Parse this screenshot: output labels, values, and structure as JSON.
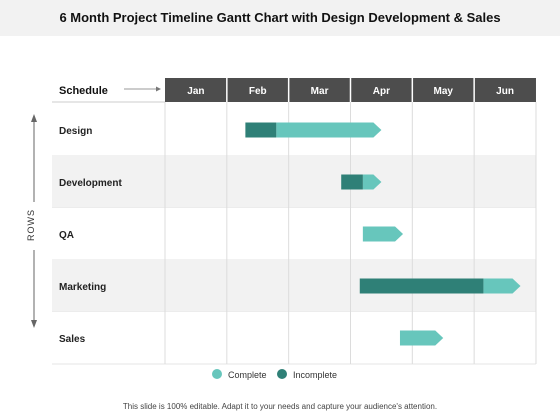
{
  "page": {
    "title": "6 Month Project Timeline Gantt Chart with Design Development & Sales",
    "footer": "This slide is 100% editable. Adapt it to your needs and capture your audience's attention."
  },
  "chart_data": {
    "type": "gantt",
    "header_label": "Schedule",
    "axis_label": "ROWS",
    "months": [
      "Jan",
      "Feb",
      "Mar",
      "Apr",
      "May",
      "Jun"
    ],
    "rows": [
      {
        "name": "Design",
        "incomplete": [
          1.3,
          1.8
        ],
        "complete": [
          1.8,
          3.5
        ]
      },
      {
        "name": "Development",
        "incomplete": [
          2.85,
          3.2
        ],
        "complete": [
          3.2,
          3.5
        ]
      },
      {
        "name": "QA",
        "incomplete": null,
        "complete": [
          3.2,
          3.85
        ]
      },
      {
        "name": "Marketing",
        "incomplete": [
          3.15,
          5.15
        ],
        "complete": [
          5.15,
          5.75
        ]
      },
      {
        "name": "Sales",
        "incomplete": null,
        "complete": [
          3.8,
          4.5
        ]
      }
    ],
    "legend": [
      {
        "label": "Complete",
        "color": "#67c6bc"
      },
      {
        "label": "Incomplete",
        "color": "#2f8077"
      }
    ],
    "colors": {
      "complete": "#67c6bc",
      "incomplete": "#2f8077",
      "header": "#4d4d4d",
      "stripe": "#f2f2f2"
    }
  }
}
